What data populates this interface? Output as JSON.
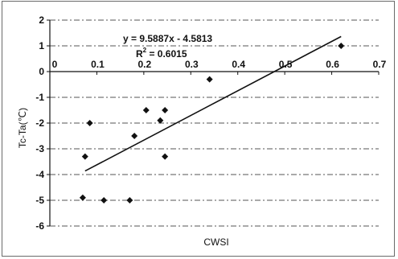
{
  "chart_data": {
    "type": "scatter",
    "title": "",
    "xlabel": "CWSI",
    "ylabel": "Tc-Ta(℃)",
    "xlim": [
      0,
      0.7
    ],
    "ylim": [
      -6,
      2
    ],
    "x_ticks": [
      "0",
      "0.1",
      "0.2",
      "0.3",
      "0.4",
      "0.5",
      "0.6",
      "0.7"
    ],
    "y_ticks": [
      "2",
      "1",
      "0",
      "-1",
      "-2",
      "-3",
      "-4",
      "-5",
      "-6"
    ],
    "grid": "horizontal dashed",
    "points": [
      {
        "x": 0.62,
        "y": 1.0
      },
      {
        "x": 0.34,
        "y": -0.3
      },
      {
        "x": 0.245,
        "y": -1.5
      },
      {
        "x": 0.205,
        "y": -1.5
      },
      {
        "x": 0.235,
        "y": -1.9
      },
      {
        "x": 0.085,
        "y": -2.0
      },
      {
        "x": 0.18,
        "y": -2.5
      },
      {
        "x": 0.245,
        "y": -3.3
      },
      {
        "x": 0.075,
        "y": -3.3
      },
      {
        "x": 0.07,
        "y": -4.9
      },
      {
        "x": 0.115,
        "y": -5.0
      },
      {
        "x": 0.17,
        "y": -5.0
      }
    ],
    "trendline": {
      "type": "linear",
      "slope": 9.5887,
      "intercept": -4.5813,
      "x_range": [
        0.075,
        0.62
      ],
      "equation_prefix": "y = ",
      "equation_body": "9.5887x - 4.5813",
      "r2_prefix": "R",
      "r2_sup": "2",
      "r2_value": " = 0.6015"
    },
    "marker": "diamond",
    "colors": {
      "marker": "#111111",
      "line": "#111111",
      "grid": "#555555"
    }
  }
}
